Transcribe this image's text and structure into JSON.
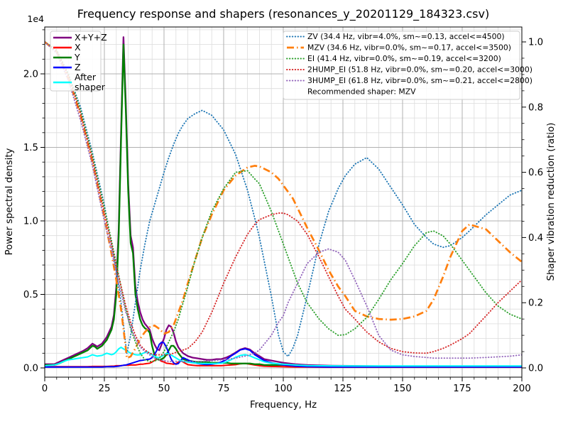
{
  "figure": {
    "title": "Frequency response and shapers (resonances_y_20201129_184323.csv)",
    "background": "#ffffff"
  },
  "axes": {
    "x": {
      "label": "Frequency, Hz",
      "range": [
        0,
        200
      ],
      "major_tick_values": [
        0,
        25,
        50,
        75,
        100,
        125,
        150,
        175,
        200
      ],
      "major_tick_labels": [
        "0",
        "25",
        "50",
        "75",
        "100",
        "125",
        "150",
        "175",
        "200"
      ],
      "minor_tick_step": 5
    },
    "y_left": {
      "label": "Power spectral density",
      "offset_text": "1e4",
      "major_tick_values": [
        0,
        0.5,
        1.0,
        1.5,
        2.0
      ],
      "major_tick_labels": [
        "0.0",
        "0.5",
        "1.0",
        "1.5",
        "2.0"
      ],
      "minor_tick_step": 0.1,
      "display_max": 2.3
    },
    "y_right": {
      "label": "Shaper vibration reduction (ratio)",
      "major_tick_values": [
        0,
        0.2,
        0.4,
        0.6,
        0.8,
        1.0
      ],
      "major_tick_labels": [
        "0.0",
        "0.2",
        "0.4",
        "0.6",
        "0.8",
        "1.0"
      ],
      "minor_tick_step": 0.05
    }
  },
  "grid": {
    "major_color": "#b0b0b0",
    "minor_color": "#dcdcdc"
  },
  "legend_left": {
    "items": [
      {
        "label": "X+Y+Z",
        "color": "#800080",
        "style": "solid"
      },
      {
        "label": "X",
        "color": "#ff0000",
        "style": "solid"
      },
      {
        "label": "Y",
        "color": "#008000",
        "style": "solid"
      },
      {
        "label": "Z",
        "color": "#0000ff",
        "style": "solid"
      },
      {
        "label": "After\nshaper",
        "color": "#00ffff",
        "style": "solid"
      }
    ]
  },
  "legend_right": {
    "items": [
      {
        "label": "ZV (34.4 Hz, vibr=4.0%, sm~=0.13, accel<=4500)",
        "color": "#1f77b4",
        "style": "dotted"
      },
      {
        "label": "MZV (34.6 Hz, vibr=0.0%, sm~=0.17, accel<=3500)",
        "color": "#ff7f0e",
        "style": "dashdot"
      },
      {
        "label": "EI (41.4 Hz, vibr=0.0%, sm~=0.19, accel<=3200)",
        "color": "#2ca02c",
        "style": "dotted"
      },
      {
        "label": "2HUMP_EI (51.8 Hz, vibr=0.0%, sm~=0.20, accel<=3000)",
        "color": "#d62728",
        "style": "dotted"
      },
      {
        "label": "3HUMP_EI (61.8 Hz, vibr=0.0%, sm~=0.21, accel<=2800)",
        "color": "#9467bd",
        "style": "dotted"
      }
    ],
    "footer": "Recommended shaper: MZV"
  },
  "chart_data": {
    "type": "line",
    "title": "Frequency response and shapers (resonances_y_20201129_184323.csv)",
    "xlabel": "Frequency, Hz",
    "xlim": [
      0,
      200
    ],
    "ylabel_left": "Power spectral density (x 1e4)",
    "ylim_left": [
      0,
      2.3
    ],
    "ylabel_right": "Shaper vibration reduction (ratio)",
    "ylim_right": [
      0,
      1.04
    ],
    "grid": "both",
    "recommended_shaper": "MZV",
    "psd_x": [
      0,
      4,
      6,
      8,
      10,
      12,
      14,
      16,
      18,
      20,
      21,
      22,
      24,
      26,
      28,
      29,
      30,
      31,
      32,
      33,
      34,
      35,
      36,
      37,
      38,
      39,
      40,
      41,
      42,
      43,
      44,
      45,
      46,
      47,
      48,
      49,
      50,
      51,
      52,
      53,
      54,
      55,
      56,
      57,
      58,
      60,
      62,
      64,
      66,
      68,
      70,
      72,
      74,
      76,
      78,
      80,
      82,
      84,
      86,
      88,
      90,
      92,
      95,
      100,
      105,
      110,
      120,
      140,
      160,
      180,
      200
    ],
    "shaper_x": [
      0,
      5,
      10,
      15,
      20,
      25,
      28,
      30,
      32,
      34,
      34.4,
      36,
      38,
      40,
      42,
      44,
      46,
      48,
      50,
      52,
      54,
      56,
      58,
      60,
      63,
      66,
      70,
      75,
      80,
      85,
      88,
      90,
      95,
      98,
      100,
      102,
      104,
      106,
      110,
      115,
      119,
      123,
      126,
      130,
      135,
      140,
      145,
      150,
      155,
      160,
      163,
      167,
      170,
      175,
      178,
      185,
      190,
      195,
      200
    ],
    "series": [
      {
        "name": "X+Y+Z",
        "axis": "left",
        "x_ref": "psd_x",
        "color": "#800080",
        "style": "solid",
        "width": 2.3,
        "y": [
          0.025,
          0.025,
          0.04,
          0.055,
          0.07,
          0.085,
          0.1,
          0.115,
          0.135,
          0.165,
          0.155,
          0.145,
          0.165,
          0.21,
          0.28,
          0.36,
          0.55,
          0.95,
          1.6,
          2.25,
          1.8,
          1.25,
          0.9,
          0.82,
          0.55,
          0.45,
          0.38,
          0.33,
          0.3,
          0.28,
          0.26,
          0.2,
          0.16,
          0.13,
          0.12,
          0.16,
          0.2,
          0.26,
          0.29,
          0.28,
          0.24,
          0.18,
          0.14,
          0.12,
          0.1,
          0.08,
          0.07,
          0.065,
          0.06,
          0.055,
          0.055,
          0.06,
          0.06,
          0.07,
          0.085,
          0.105,
          0.125,
          0.135,
          0.125,
          0.1,
          0.08,
          0.06,
          0.05,
          0.035,
          0.025,
          0.02,
          0.015,
          0.012,
          0.012,
          0.012,
          0.012
        ]
      },
      {
        "name": "X",
        "axis": "left",
        "x_ref": "psd_x",
        "color": "#ff0000",
        "style": "solid",
        "width": 2,
        "y": [
          0.008,
          0.008,
          0.008,
          0.008,
          0.008,
          0.008,
          0.008,
          0.008,
          0.008,
          0.01,
          0.01,
          0.01,
          0.01,
          0.01,
          0.012,
          0.012,
          0.015,
          0.015,
          0.015,
          0.018,
          0.018,
          0.018,
          0.02,
          0.02,
          0.02,
          0.022,
          0.025,
          0.025,
          0.028,
          0.03,
          0.032,
          0.04,
          0.05,
          0.06,
          0.055,
          0.045,
          0.04,
          0.032,
          0.03,
          0.028,
          0.025,
          0.028,
          0.04,
          0.05,
          0.04,
          0.022,
          0.018,
          0.015,
          0.015,
          0.015,
          0.015,
          0.015,
          0.015,
          0.018,
          0.02,
          0.022,
          0.028,
          0.03,
          0.025,
          0.02,
          0.015,
          0.012,
          0.01,
          0.008,
          0.006,
          0.006,
          0.005,
          0.005,
          0.005,
          0.005,
          0.005
        ]
      },
      {
        "name": "Y",
        "axis": "left",
        "x_ref": "psd_x",
        "color": "#008000",
        "style": "solid",
        "width": 2.3,
        "y": [
          0.02,
          0.02,
          0.03,
          0.045,
          0.06,
          0.075,
          0.09,
          0.105,
          0.12,
          0.15,
          0.145,
          0.13,
          0.15,
          0.19,
          0.26,
          0.33,
          0.5,
          0.9,
          1.55,
          2.2,
          1.75,
          1.2,
          0.85,
          0.78,
          0.5,
          0.4,
          0.33,
          0.29,
          0.27,
          0.26,
          0.24,
          0.15,
          0.09,
          0.06,
          0.055,
          0.06,
          0.07,
          0.09,
          0.12,
          0.15,
          0.15,
          0.13,
          0.1,
          0.08,
          0.06,
          0.05,
          0.045,
          0.04,
          0.04,
          0.04,
          0.035,
          0.035,
          0.035,
          0.035,
          0.03,
          0.03,
          0.03,
          0.03,
          0.03,
          0.025,
          0.025,
          0.02,
          0.02,
          0.02,
          0.015,
          0.012,
          0.01,
          0.01,
          0.01,
          0.01,
          0.01
        ]
      },
      {
        "name": "Z",
        "axis": "left",
        "x_ref": "psd_x",
        "color": "#0000ff",
        "style": "solid",
        "width": 2,
        "y": [
          0.006,
          0.006,
          0.006,
          0.006,
          0.006,
          0.006,
          0.006,
          0.006,
          0.006,
          0.006,
          0.006,
          0.006,
          0.006,
          0.008,
          0.008,
          0.008,
          0.01,
          0.012,
          0.015,
          0.018,
          0.02,
          0.025,
          0.03,
          0.035,
          0.04,
          0.045,
          0.05,
          0.052,
          0.055,
          0.058,
          0.06,
          0.07,
          0.09,
          0.12,
          0.16,
          0.175,
          0.17,
          0.14,
          0.1,
          0.06,
          0.035,
          0.025,
          0.03,
          0.05,
          0.07,
          0.055,
          0.04,
          0.03,
          0.025,
          0.022,
          0.025,
          0.03,
          0.04,
          0.055,
          0.08,
          0.1,
          0.122,
          0.13,
          0.12,
          0.09,
          0.07,
          0.05,
          0.035,
          0.02,
          0.012,
          0.008,
          0.006,
          0.006,
          0.006,
          0.006,
          0.006
        ]
      },
      {
        "name": "After shaper",
        "axis": "left",
        "x_ref": "psd_x",
        "color": "#00ffff",
        "style": "solid",
        "width": 2,
        "y": [
          0.015,
          0.02,
          0.03,
          0.045,
          0.055,
          0.06,
          0.065,
          0.07,
          0.075,
          0.09,
          0.085,
          0.08,
          0.085,
          0.1,
          0.09,
          0.095,
          0.11,
          0.13,
          0.14,
          0.13,
          0.12,
          0.11,
          0.1,
          0.095,
          0.09,
          0.088,
          0.09,
          0.098,
          0.105,
          0.11,
          0.1,
          0.09,
          0.08,
          0.072,
          0.07,
          0.078,
          0.088,
          0.098,
          0.095,
          0.088,
          0.078,
          0.068,
          0.058,
          0.05,
          0.045,
          0.04,
          0.035,
          0.032,
          0.03,
          0.03,
          0.03,
          0.03,
          0.032,
          0.04,
          0.055,
          0.072,
          0.085,
          0.09,
          0.082,
          0.068,
          0.055,
          0.042,
          0.032,
          0.025,
          0.02,
          0.016,
          0.014,
          0.013,
          0.013,
          0.013,
          0.013
        ]
      },
      {
        "name": "ZV",
        "axis": "right",
        "x_ref": "shaper_x",
        "color": "#1f77b4",
        "style": "dotted",
        "width": 1.9,
        "y": [
          1.0,
          0.975,
          0.9,
          0.8,
          0.66,
          0.5,
          0.38,
          0.3,
          0.2,
          0.07,
          0.045,
          0.1,
          0.2,
          0.3,
          0.38,
          0.45,
          0.5,
          0.55,
          0.6,
          0.645,
          0.685,
          0.72,
          0.745,
          0.765,
          0.78,
          0.79,
          0.775,
          0.73,
          0.655,
          0.545,
          0.46,
          0.4,
          0.22,
          0.1,
          0.05,
          0.035,
          0.06,
          0.1,
          0.22,
          0.38,
          0.48,
          0.55,
          0.59,
          0.625,
          0.645,
          0.61,
          0.555,
          0.5,
          0.44,
          0.4,
          0.38,
          0.37,
          0.375,
          0.4,
          0.42,
          0.47,
          0.5,
          0.53,
          0.545
        ]
      },
      {
        "name": "MZV",
        "axis": "right",
        "x_ref": "shaper_x",
        "color": "#ff7f0e",
        "style": "dashdot",
        "width": 2.7,
        "y": [
          1.0,
          0.97,
          0.885,
          0.775,
          0.63,
          0.46,
          0.35,
          0.27,
          0.18,
          0.06,
          0.03,
          0.035,
          0.06,
          0.09,
          0.11,
          0.125,
          0.13,
          0.12,
          0.105,
          0.11,
          0.13,
          0.17,
          0.21,
          0.26,
          0.33,
          0.4,
          0.47,
          0.545,
          0.59,
          0.615,
          0.62,
          0.618,
          0.6,
          0.58,
          0.56,
          0.54,
          0.52,
          0.49,
          0.43,
          0.36,
          0.3,
          0.25,
          0.22,
          0.175,
          0.158,
          0.15,
          0.148,
          0.15,
          0.158,
          0.175,
          0.21,
          0.28,
          0.34,
          0.42,
          0.44,
          0.425,
          0.39,
          0.355,
          0.325
        ]
      },
      {
        "name": "EI",
        "axis": "right",
        "x_ref": "shaper_x",
        "color": "#2ca02c",
        "style": "dotted",
        "width": 1.9,
        "y": [
          1.0,
          0.975,
          0.9,
          0.79,
          0.65,
          0.49,
          0.39,
          0.32,
          0.25,
          0.18,
          0.17,
          0.12,
          0.08,
          0.045,
          0.025,
          0.02,
          0.02,
          0.03,
          0.05,
          0.08,
          0.11,
          0.15,
          0.2,
          0.25,
          0.33,
          0.4,
          0.48,
          0.55,
          0.6,
          0.605,
          0.58,
          0.565,
          0.48,
          0.42,
          0.38,
          0.34,
          0.3,
          0.26,
          0.2,
          0.15,
          0.12,
          0.1,
          0.102,
          0.12,
          0.155,
          0.21,
          0.27,
          0.32,
          0.375,
          0.415,
          0.42,
          0.405,
          0.38,
          0.33,
          0.3,
          0.23,
          0.19,
          0.165,
          0.15
        ]
      },
      {
        "name": "2HUMP_EI",
        "axis": "right",
        "x_ref": "shaper_x",
        "color": "#d62728",
        "style": "dotted",
        "width": 1.9,
        "y": [
          1.0,
          0.97,
          0.895,
          0.78,
          0.64,
          0.475,
          0.38,
          0.31,
          0.25,
          0.19,
          0.18,
          0.14,
          0.1,
          0.07,
          0.055,
          0.045,
          0.04,
          0.04,
          0.04,
          0.04,
          0.045,
          0.05,
          0.055,
          0.06,
          0.08,
          0.11,
          0.17,
          0.26,
          0.34,
          0.41,
          0.44,
          0.455,
          0.47,
          0.475,
          0.475,
          0.47,
          0.46,
          0.45,
          0.41,
          0.34,
          0.28,
          0.22,
          0.18,
          0.15,
          0.11,
          0.08,
          0.06,
          0.05,
          0.046,
          0.045,
          0.05,
          0.06,
          0.07,
          0.09,
          0.105,
          0.16,
          0.2,
          0.235,
          0.27
        ]
      },
      {
        "name": "3HUMP_EI",
        "axis": "right",
        "x_ref": "shaper_x",
        "color": "#9467bd",
        "style": "dotted",
        "width": 1.9,
        "y": [
          1.0,
          0.965,
          0.88,
          0.76,
          0.62,
          0.45,
          0.36,
          0.29,
          0.23,
          0.17,
          0.165,
          0.125,
          0.09,
          0.065,
          0.05,
          0.04,
          0.03,
          0.025,
          0.022,
          0.02,
          0.02,
          0.02,
          0.02,
          0.02,
          0.02,
          0.02,
          0.022,
          0.025,
          0.03,
          0.038,
          0.045,
          0.055,
          0.1,
          0.14,
          0.16,
          0.2,
          0.23,
          0.26,
          0.32,
          0.355,
          0.365,
          0.355,
          0.33,
          0.27,
          0.19,
          0.1,
          0.055,
          0.04,
          0.035,
          0.032,
          0.03,
          0.03,
          0.03,
          0.03,
          0.03,
          0.032,
          0.034,
          0.036,
          0.04
        ]
      }
    ]
  }
}
